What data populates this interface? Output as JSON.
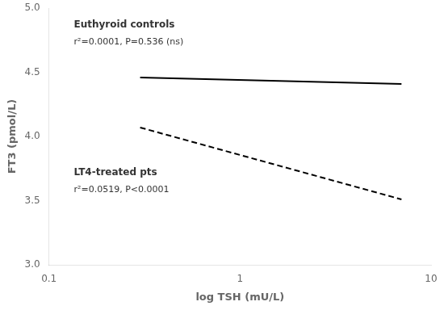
{
  "chart_data": {
    "type": "line",
    "xlabel": "log TSH (mU/L)",
    "ylabel": "FT3 (pmol/L)",
    "log": "x",
    "xlim": [
      0.1,
      10
    ],
    "ylim": [
      3.0,
      5.0
    ],
    "xticks": [
      0.1,
      1,
      10
    ],
    "yticks": [
      {
        "value": 3.0,
        "label": "3.0"
      },
      3.5,
      {
        "value": 4.0,
        "label": "4.0"
      },
      4.5,
      {
        "value": 5.0,
        "label": "5.0"
      }
    ],
    "grid": false,
    "series": [
      {
        "name": "Euthyroid controls",
        "color": "#000000",
        "line_style": "solid",
        "x": [
          0.3,
          7.0
        ],
        "values": [
          4.46,
          4.41
        ]
      },
      {
        "name": "LT4-treated pts",
        "color": "#000000",
        "line_style": "dashed",
        "x": [
          0.3,
          7.0
        ],
        "values": [
          4.07,
          3.51
        ]
      }
    ],
    "annotations": [
      {
        "text": "Euthyroid controls",
        "x": 0.135,
        "y": 4.83
      },
      {
        "text": "r²=0.0001, P=0.536 (ns)",
        "x": 0.135,
        "y": 4.7
      },
      {
        "text": "LT4-treated pts",
        "x": 0.135,
        "y": 3.68
      },
      {
        "text": "r²=0.0519, P<0.0001",
        "x": 0.135,
        "y": 3.55
      }
    ]
  }
}
